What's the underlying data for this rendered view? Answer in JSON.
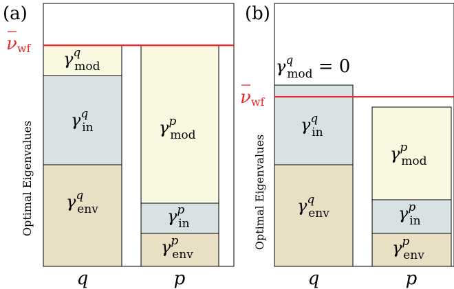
{
  "panels": [
    {
      "id": "a",
      "label": "(a)",
      "ylabel": "Optimal Eigenvalues",
      "threshold_label": {
        "symbol": "ν",
        "sub": "wf"
      },
      "columns": [
        {
          "category": "q",
          "segments": [
            {
              "name": "env",
              "sup": "q",
              "sub": "env",
              "color": "#e8dfc5"
            },
            {
              "name": "in",
              "sup": "q",
              "sub": "in",
              "color": "#d9e2e2"
            },
            {
              "name": "mod",
              "sup": "q",
              "sub": "mod",
              "color": "#f8f9e0"
            }
          ]
        },
        {
          "category": "p",
          "segments": [
            {
              "name": "env",
              "sup": "p",
              "sub": "env",
              "color": "#e8dfc5"
            },
            {
              "name": "in",
              "sup": "p",
              "sub": "in",
              "color": "#d9e2e2"
            },
            {
              "name": "mod",
              "sup": "p",
              "sub": "mod",
              "color": "#f8f9e0"
            }
          ]
        }
      ]
    },
    {
      "id": "b",
      "label": "(b)",
      "ylabel": "Optimal Eigenvalues",
      "threshold_label": {
        "symbol": "ν",
        "sub": "wf"
      },
      "annotation": {
        "sup": "q",
        "sub": "mod",
        "suffix": " = 0"
      },
      "columns": [
        {
          "category": "q",
          "segments": [
            {
              "name": "env",
              "sup": "q",
              "sub": "env",
              "color": "#e8dfc5"
            },
            {
              "name": "in",
              "sup": "q",
              "sub": "in",
              "color": "#d9e2e2"
            }
          ]
        },
        {
          "category": "p",
          "segments": [
            {
              "name": "env",
              "sup": "p",
              "sub": "env",
              "color": "#e8dfc5"
            },
            {
              "name": "in",
              "sup": "p",
              "sub": "in",
              "color": "#d9e2e2"
            },
            {
              "name": "mod",
              "sup": "p",
              "sub": "mod",
              "color": "#f8f9e0"
            }
          ]
        }
      ]
    }
  ],
  "colors": {
    "threshold": "#e8272b",
    "env": "#e8dfc5",
    "in": "#d9e2e2",
    "mod": "#f8f9e0"
  },
  "symbol": "γ"
}
